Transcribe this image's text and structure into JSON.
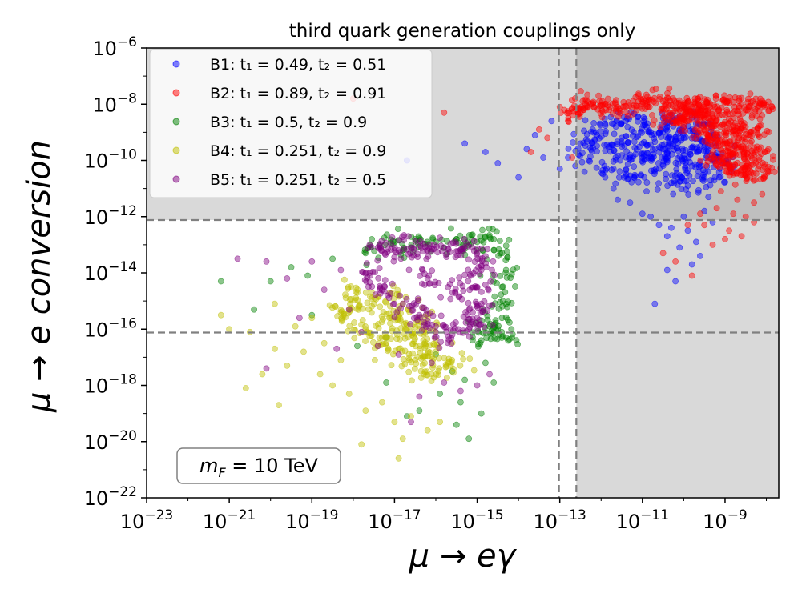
{
  "chart_data": {
    "type": "scatter",
    "title": "third quark generation couplings only",
    "xlabel": "μ → eγ",
    "ylabel": "μ → e conversion",
    "xscale": "log",
    "yscale": "log",
    "xlim_exp": [
      -23,
      -7.7
    ],
    "ylim_exp": [
      -22,
      -6
    ],
    "x_ticks": [
      {
        "exp": -23,
        "base": "10",
        "sup": "−23"
      },
      {
        "exp": -21,
        "base": "10",
        "sup": "−21"
      },
      {
        "exp": -19,
        "base": "10",
        "sup": "−19"
      },
      {
        "exp": -17,
        "base": "10",
        "sup": "−17"
      },
      {
        "exp": -15,
        "base": "10",
        "sup": "−15"
      },
      {
        "exp": -13,
        "base": "10",
        "sup": "−13"
      },
      {
        "exp": -11,
        "base": "10",
        "sup": "−11"
      },
      {
        "exp": -9,
        "base": "10",
        "sup": "−9"
      }
    ],
    "y_ticks": [
      {
        "exp": -22,
        "base": "10",
        "sup": "−22"
      },
      {
        "exp": -20,
        "base": "10",
        "sup": "−20"
      },
      {
        "exp": -18,
        "base": "10",
        "sup": "−18"
      },
      {
        "exp": -16,
        "base": "10",
        "sup": "−16"
      },
      {
        "exp": -14,
        "base": "10",
        "sup": "−14"
      },
      {
        "exp": -12,
        "base": "10",
        "sup": "−12"
      },
      {
        "exp": -10,
        "base": "10",
        "sup": "−10"
      },
      {
        "exp": -8,
        "base": "10",
        "sup": "−8"
      },
      {
        "exp": -6,
        "base": "10",
        "sup": "−6"
      }
    ],
    "excluded_regions": {
      "x_bound_exp": -12.6,
      "y_bound_exp": -12.12,
      "fill_color": "#d9d9d9",
      "overlap_color": "#bfbfbf"
    },
    "reference_lines": {
      "vertical_exp": [
        -13.02,
        -12.6
      ],
      "horizontal_exp": [
        -12.12,
        -16.12
      ],
      "color": "#808080"
    },
    "annotation": {
      "main": "m",
      "sub": "F",
      "rest": " = 10 TeV"
    },
    "legend": {
      "location": "upper-left",
      "entries": [
        {
          "label": "B1: t₁ = 0.49, t₂ = 0.51"
        },
        {
          "label": "B2: t₁ = 0.89, t₂ = 0.91"
        },
        {
          "label": "B3: t₁ = 0.5, t₂ = 0.9"
        },
        {
          "label": "B4: t₁ = 0.251, t₂ = 0.9"
        },
        {
          "label": "B5: t₁ = 0.251, t₂ = 0.5"
        }
      ]
    },
    "series": [
      {
        "name": "B1",
        "color": "#0000ff",
        "t1": 0.49,
        "t2": 0.51,
        "core_points": [
          [
            -12.5,
            -9.4
          ],
          [
            -12.1,
            -9.1
          ],
          [
            -11.8,
            -9.5
          ],
          [
            -11.5,
            -9.2
          ],
          [
            -11.3,
            -9.8
          ],
          [
            -11.0,
            -9.4
          ],
          [
            -10.8,
            -9.0
          ],
          [
            -10.6,
            -9.7
          ],
          [
            -10.4,
            -10.0
          ],
          [
            -10.2,
            -9.3
          ],
          [
            -10.0,
            -9.8
          ],
          [
            -9.8,
            -10.2
          ],
          [
            -9.6,
            -9.5
          ],
          [
            -9.4,
            -10.4
          ],
          [
            -9.2,
            -9.9
          ],
          [
            -9.0,
            -10.1
          ],
          [
            -11.9,
            -8.7
          ],
          [
            -11.4,
            -8.6
          ],
          [
            -10.9,
            -8.8
          ],
          [
            -10.5,
            -8.5
          ],
          [
            -10.1,
            -8.9
          ],
          [
            -9.7,
            -8.7
          ],
          [
            -9.3,
            -9.2
          ],
          [
            -12.3,
            -10.0
          ],
          [
            -11.7,
            -10.3
          ],
          [
            -11.2,
            -10.6
          ],
          [
            -10.7,
            -10.4
          ],
          [
            -10.3,
            -10.8
          ],
          [
            -9.9,
            -10.9
          ],
          [
            -9.5,
            -10.6
          ],
          [
            -11.0,
            -9.9
          ],
          [
            -10.5,
            -9.6
          ],
          [
            -10.0,
            -9.2
          ]
        ],
        "core_center": [
          -10.7,
          -9.6
        ],
        "core_spread": [
          1.05,
          0.65
        ],
        "core_count": 420,
        "scatter_points": [
          [
            -15.3,
            -9.4
          ],
          [
            -14.8,
            -9.7
          ],
          [
            -14.5,
            -10.1
          ],
          [
            -13.8,
            -9.6
          ],
          [
            -13.6,
            -9.1
          ],
          [
            -13.4,
            -9.9
          ],
          [
            -13.0,
            -10.3
          ],
          [
            -13.2,
            -8.6
          ],
          [
            -16.7,
            -10.0
          ],
          [
            -14.0,
            -10.6
          ],
          [
            -12.8,
            -9.9
          ],
          [
            -11.7,
            -11.0
          ],
          [
            -11.3,
            -11.5
          ],
          [
            -11.0,
            -11.9
          ],
          [
            -10.6,
            -12.3
          ],
          [
            -10.4,
            -12.7
          ],
          [
            -10.1,
            -13.1
          ],
          [
            -9.9,
            -12.5
          ],
          [
            -9.6,
            -13.4
          ],
          [
            -9.8,
            -13.7
          ],
          [
            -10.0,
            -12.0
          ],
          [
            -10.7,
            -15.1
          ],
          [
            -10.2,
            -14.3
          ],
          [
            -10.4,
            -13.9
          ],
          [
            -11.6,
            -11.4
          ],
          [
            -10.9,
            -11.1
          ],
          [
            -9.5,
            -11.8
          ],
          [
            -9.3,
            -12.2
          ],
          [
            -9.4,
            -11.3
          ],
          [
            -10.3,
            -12.4
          ],
          [
            -10.8,
            -12.0
          ],
          [
            -11.9,
            -10.6
          ],
          [
            -12.4,
            -10.4
          ],
          [
            -9.7,
            -12.9
          ]
        ]
      },
      {
        "name": "B2",
        "color": "#ff0000",
        "t1": 0.89,
        "t2": 0.91,
        "core_points": [
          [
            -11.0,
            -8.0
          ],
          [
            -10.5,
            -7.9
          ],
          [
            -10.0,
            -8.1
          ],
          [
            -9.5,
            -8.0
          ],
          [
            -9.0,
            -7.9
          ],
          [
            -8.5,
            -8.2
          ],
          [
            -8.1,
            -8.0
          ],
          [
            -9.8,
            -8.4
          ],
          [
            -9.3,
            -8.6
          ],
          [
            -8.8,
            -8.8
          ],
          [
            -8.4,
            -9.0
          ],
          [
            -9.0,
            -9.3
          ],
          [
            -8.6,
            -9.6
          ],
          [
            -8.3,
            -9.8
          ],
          [
            -9.4,
            -9.1
          ],
          [
            -9.1,
            -9.9
          ],
          [
            -8.9,
            -10.2
          ],
          [
            -8.5,
            -10.5
          ],
          [
            -8.2,
            -10.3
          ],
          [
            -11.6,
            -8.1
          ],
          [
            -12.2,
            -8.0
          ],
          [
            -12.6,
            -8.2
          ],
          [
            -10.2,
            -8.6
          ],
          [
            -9.6,
            -8.3
          ]
        ],
        "core_center": [
          -9.2,
          -8.6
        ],
        "core_spread": [
          1.0,
          0.7
        ],
        "core_count": 650,
        "scatter_points": [
          [
            -13.7,
            -9.7
          ],
          [
            -13.0,
            -8.1
          ],
          [
            -12.8,
            -8.6
          ],
          [
            -13.3,
            -9.2
          ],
          [
            -18.0,
            -7.8
          ],
          [
            -15.8,
            -8.3
          ],
          [
            -13.5,
            -8.9
          ],
          [
            -12.7,
            -9.9
          ],
          [
            -9.1,
            -11.1
          ],
          [
            -8.7,
            -11.4
          ],
          [
            -8.5,
            -12.0
          ],
          [
            -8.3,
            -12.2
          ],
          [
            -9.2,
            -11.7
          ],
          [
            -9.5,
            -12.3
          ],
          [
            -9.0,
            -12.8
          ],
          [
            -9.9,
            -12.3
          ],
          [
            -8.9,
            -12.5
          ],
          [
            -10.5,
            -13.3
          ],
          [
            -10.2,
            -13.6
          ],
          [
            -9.8,
            -14.1
          ],
          [
            -9.3,
            -13.0
          ],
          [
            -8.8,
            -11.9
          ],
          [
            -8.3,
            -11.5
          ],
          [
            -8.1,
            -11.2
          ],
          [
            -8.6,
            -12.7
          ],
          [
            -9.6,
            -11.9
          ]
        ]
      },
      {
        "name": "B3",
        "color": "#008000",
        "t1": 0.5,
        "t2": 0.9,
        "core_points": [
          [
            -17.0,
            -12.9
          ],
          [
            -16.5,
            -12.8
          ],
          [
            -16.0,
            -12.9
          ],
          [
            -15.5,
            -12.8
          ],
          [
            -15.0,
            -12.9
          ],
          [
            -14.6,
            -12.8
          ],
          [
            -14.4,
            -13.3
          ],
          [
            -14.3,
            -13.9
          ],
          [
            -14.4,
            -14.5
          ],
          [
            -14.3,
            -15.1
          ],
          [
            -14.4,
            -15.6
          ],
          [
            -14.5,
            -16.0
          ],
          [
            -14.3,
            -16.3
          ],
          [
            -14.7,
            -15.9
          ],
          [
            -15.2,
            -13.0
          ],
          [
            -16.8,
            -13.2
          ],
          [
            -17.6,
            -13.1
          ],
          [
            -14.9,
            -16.4
          ],
          [
            -14.6,
            -16.1
          ]
        ],
        "core_center": [
          -15.2,
          -14.0
        ],
        "core_spread": [
          0.9,
          0.9
        ],
        "core_count": 160,
        "scatter_points": [
          [
            -18.5,
            -13.5
          ],
          [
            -19.1,
            -14.1
          ],
          [
            -19.5,
            -13.8
          ],
          [
            -20.0,
            -14.3
          ],
          [
            -21.2,
            -14.3
          ],
          [
            -20.4,
            -15.3
          ],
          [
            -19.0,
            -15.5
          ],
          [
            -17.7,
            -13.3
          ],
          [
            -17.2,
            -16.3
          ],
          [
            -17.9,
            -16.6
          ],
          [
            -16.0,
            -16.9
          ],
          [
            -15.6,
            -17.5
          ],
          [
            -15.3,
            -17.8
          ],
          [
            -14.8,
            -17.2
          ],
          [
            -14.6,
            -17.9
          ],
          [
            -15.4,
            -18.6
          ],
          [
            -15.9,
            -18.3
          ],
          [
            -16.4,
            -18.9
          ],
          [
            -15.5,
            -19.4
          ],
          [
            -15.2,
            -19.9
          ],
          [
            -16.7,
            -19.1
          ],
          [
            -17.2,
            -17.9
          ],
          [
            -14.9,
            -19.0
          ]
        ]
      },
      {
        "name": "B4",
        "color": "#bfbf00",
        "t1": 0.251,
        "t2": 0.9,
        "core_points": [
          [
            -17.9,
            -14.7
          ],
          [
            -17.5,
            -15.1
          ],
          [
            -17.1,
            -15.6
          ],
          [
            -16.7,
            -16.0
          ],
          [
            -16.3,
            -16.4
          ],
          [
            -16.0,
            -16.8
          ],
          [
            -15.7,
            -17.2
          ],
          [
            -17.3,
            -16.3
          ],
          [
            -16.9,
            -16.7
          ],
          [
            -16.5,
            -17.1
          ],
          [
            -16.1,
            -17.6
          ],
          [
            -18.3,
            -15.4
          ],
          [
            -17.7,
            -16.0
          ],
          [
            -16.8,
            -15.1
          ],
          [
            -16.2,
            -15.6
          ]
        ],
        "core_center": [
          -16.9,
          -16.0
        ],
        "core_spread": [
          1.1,
          0.9
        ],
        "core_count": 260,
        "scatter_points": [
          [
            -21.2,
            -15.5
          ],
          [
            -20.5,
            -16.1
          ],
          [
            -19.9,
            -15.1
          ],
          [
            -19.4,
            -15.9
          ],
          [
            -19.0,
            -15.6
          ],
          [
            -18.7,
            -16.5
          ],
          [
            -18.3,
            -17.1
          ],
          [
            -18.8,
            -17.6
          ],
          [
            -19.2,
            -16.8
          ],
          [
            -20.2,
            -17.6
          ],
          [
            -19.6,
            -17.3
          ],
          [
            -20.6,
            -18.1
          ],
          [
            -19.8,
            -18.7
          ],
          [
            -18.1,
            -18.3
          ],
          [
            -17.7,
            -18.9
          ],
          [
            -17.3,
            -18.6
          ],
          [
            -17.0,
            -19.3
          ],
          [
            -16.6,
            -19.1
          ],
          [
            -16.2,
            -19.6
          ],
          [
            -15.9,
            -19.3
          ],
          [
            -16.8,
            -19.9
          ],
          [
            -17.8,
            -20.1
          ],
          [
            -16.9,
            -20.6
          ],
          [
            -19.9,
            -16.7
          ],
          [
            -21.0,
            -16.0
          ],
          [
            -18.5,
            -18.0
          ]
        ]
      },
      {
        "name": "B5",
        "color": "#800080",
        "t1": 0.251,
        "t2": 0.5,
        "core_points": [
          [
            -17.4,
            -13.1
          ],
          [
            -17.0,
            -13.2
          ],
          [
            -16.6,
            -13.1
          ],
          [
            -16.2,
            -13.2
          ],
          [
            -15.8,
            -13.1
          ],
          [
            -15.4,
            -13.2
          ],
          [
            -15.0,
            -13.3
          ],
          [
            -14.9,
            -13.9
          ],
          [
            -15.0,
            -14.5
          ],
          [
            -14.9,
            -15.1
          ],
          [
            -15.0,
            -15.6
          ],
          [
            -15.2,
            -16.0
          ],
          [
            -15.6,
            -16.2
          ],
          [
            -16.0,
            -15.9
          ],
          [
            -16.4,
            -15.5
          ],
          [
            -16.8,
            -15.1
          ],
          [
            -17.3,
            -14.6
          ],
          [
            -17.6,
            -14.0
          ],
          [
            -16.2,
            -14.2
          ],
          [
            -15.6,
            -14.7
          ]
        ],
        "core_center": [
          -16.1,
          -14.4
        ],
        "core_spread": [
          0.75,
          0.85
        ],
        "core_count": 280,
        "scatter_points": [
          [
            -20.8,
            -13.5
          ],
          [
            -20.1,
            -13.6
          ],
          [
            -19.6,
            -14.2
          ],
          [
            -19.0,
            -13.6
          ],
          [
            -18.7,
            -14.6
          ],
          [
            -18.3,
            -13.9
          ],
          [
            -18.1,
            -15.3
          ],
          [
            -17.8,
            -16.1
          ],
          [
            -17.4,
            -16.6
          ],
          [
            -16.9,
            -16.9
          ],
          [
            -16.1,
            -17.2
          ],
          [
            -15.8,
            -17.9
          ],
          [
            -15.4,
            -18.2
          ],
          [
            -15.0,
            -18.0
          ],
          [
            -14.7,
            -17.6
          ],
          [
            -20.1,
            -17.4
          ],
          [
            -16.6,
            -19.3
          ],
          [
            -18.4,
            -16.7
          ],
          [
            -19.3,
            -15.6
          ],
          [
            -16.4,
            -18.4
          ]
        ]
      }
    ]
  }
}
